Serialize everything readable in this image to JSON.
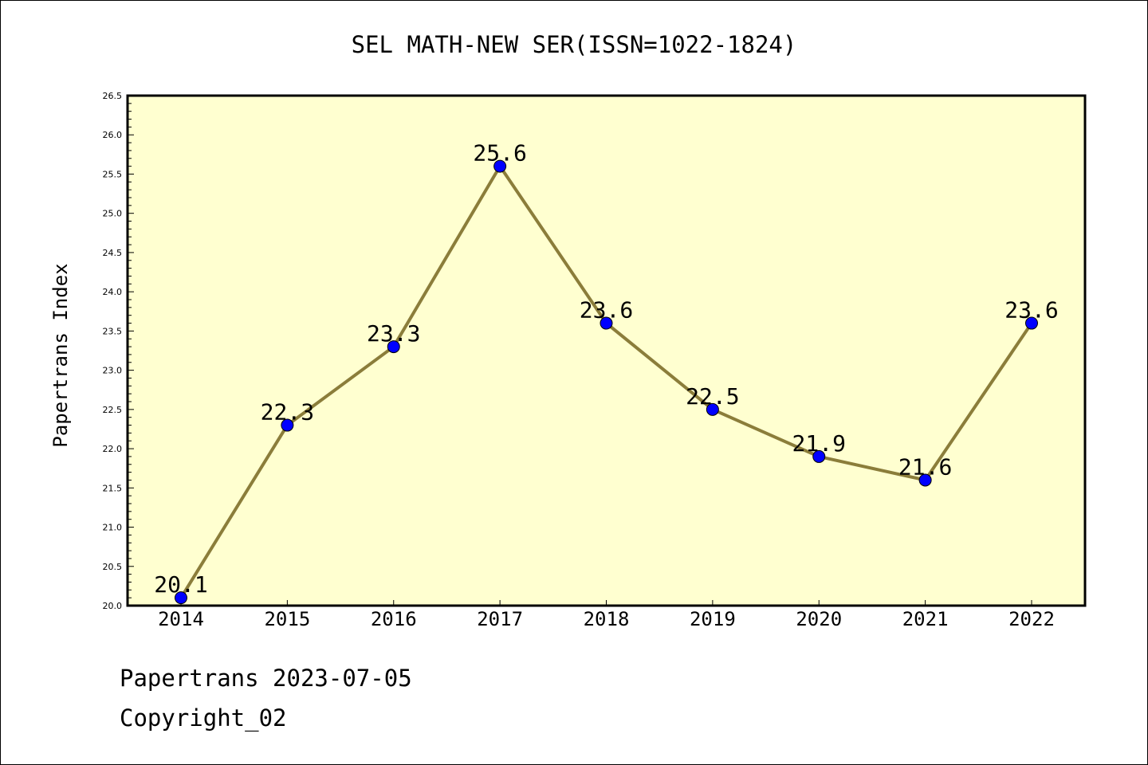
{
  "chart_data": {
    "type": "line",
    "title": "SEL MATH-NEW SER(ISSN=1022-1824)",
    "xlabel": "",
    "ylabel": "Papertrans Index",
    "x": [
      "2014",
      "2015",
      "2016",
      "2017",
      "2018",
      "2019",
      "2020",
      "2021",
      "2022"
    ],
    "series": [
      {
        "values": [
          20.1,
          22.3,
          23.3,
          25.6,
          23.6,
          22.5,
          21.9,
          21.6,
          23.6
        ],
        "labels": [
          "20.1",
          "22.3",
          "23.3",
          "25.6",
          "23.6",
          "22.5",
          "21.9",
          "21.6",
          "23.6"
        ]
      }
    ],
    "ylim": [
      20.0,
      26.5
    ],
    "yticks": [
      "20.0",
      "20.5",
      "21.0",
      "21.5",
      "22.0",
      "22.5",
      "23.0",
      "23.5",
      "24.0",
      "24.5",
      "25.0",
      "25.5",
      "26.0",
      "26.5"
    ],
    "grid": false,
    "legend": "none",
    "colors": {
      "plot_background": "#ffffd0",
      "line": "#8b7d3a",
      "marker": "#0000ff",
      "axes": "#000000"
    }
  },
  "footer": {
    "line1": "Papertrans 2023-07-05",
    "line2": "Copyright_02"
  }
}
